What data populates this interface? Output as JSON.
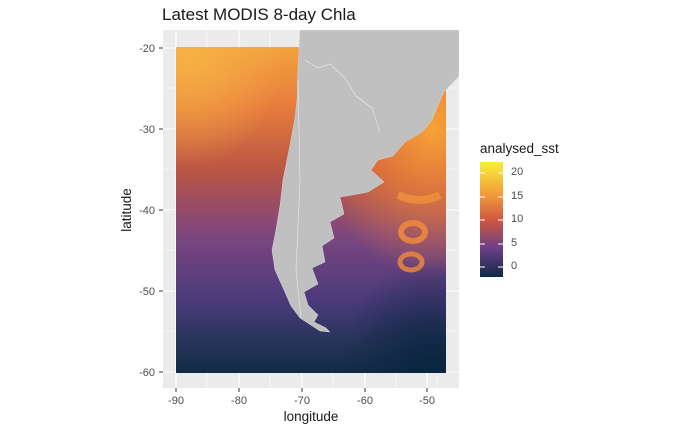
{
  "title": "Latest MODIS 8-day Chla",
  "axes": {
    "xlabel": "longitude",
    "ylabel": "latitude",
    "x_ticks": [
      "-90",
      "-80",
      "-70",
      "-60",
      "-50"
    ],
    "y_ticks": [
      "-20",
      "-30",
      "-40",
      "-50",
      "-60"
    ],
    "xlim": [
      -92,
      -46
    ],
    "ylim": [
      -62,
      -19
    ]
  },
  "legend": {
    "title": "analysed_sst",
    "labels": [
      "20",
      "15",
      "10",
      "5",
      "0"
    ],
    "colors": [
      "#f5f03a",
      "#f5a43a",
      "#d0593f",
      "#6b3f86",
      "#0e2a45"
    ]
  },
  "map": {
    "land_color": "#c0c0c0",
    "panel_background": "#ebebeb"
  }
}
